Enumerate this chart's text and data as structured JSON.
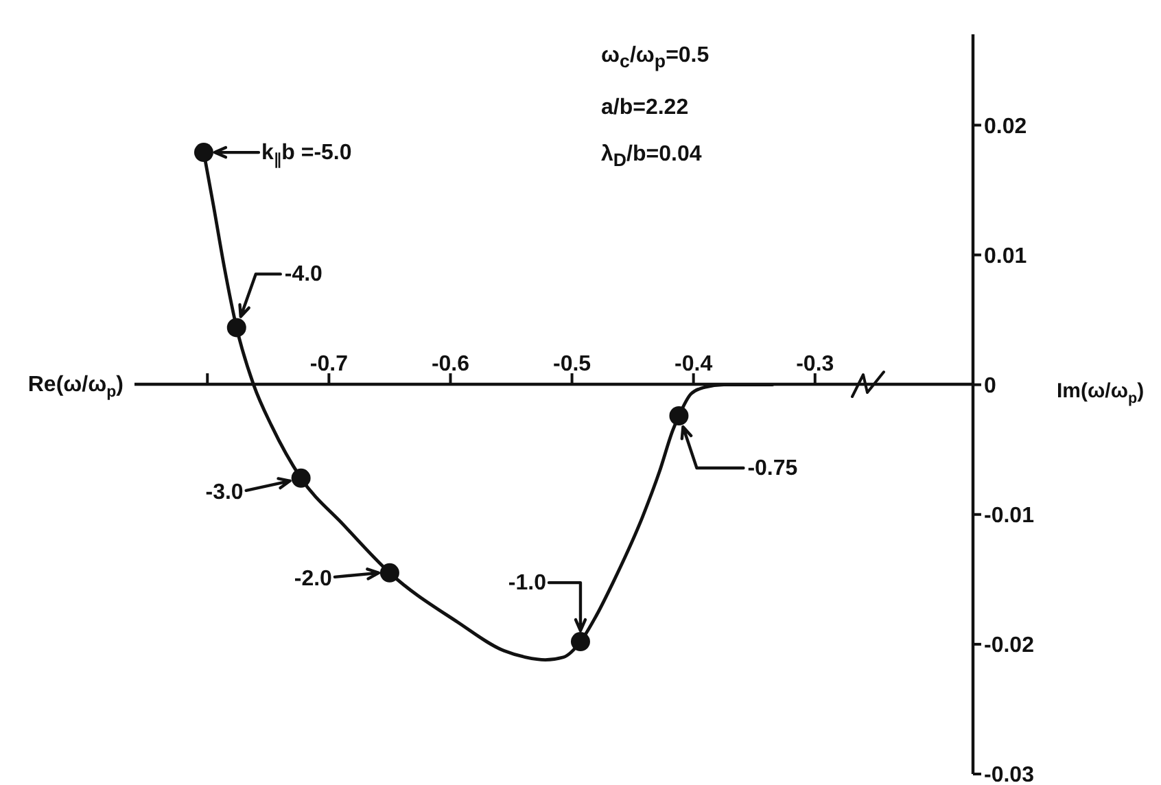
{
  "chart_data": {
    "type": "line",
    "xlabel": "Re(ω/ω$_{p}$)",
    "ylabel": "Im(ω/ω$_{p}$)",
    "annotations": [
      "ω$_{c}$/ω$_{p}$=0.5",
      "a/b=2.22",
      "λ$_{D}$/b=0.04",
      {
        "text": "k$_{∥}$b =-5.0",
        "x": -0.803,
        "y": 0.0179
      },
      {
        "text": "-4.0",
        "x": -0.776,
        "y": 0.0044
      },
      {
        "text": "-3.0",
        "x": -0.723,
        "y": -0.0072
      },
      {
        "text": "-2.0",
        "x": -0.65,
        "y": -0.0145
      },
      {
        "text": "-1.0",
        "x": -0.493,
        "y": -0.0198
      },
      {
        "text": "-0.75",
        "x": -0.412,
        "y": -0.0024
      }
    ],
    "series": [
      {
        "color": "#111111",
        "x": [
          -0.803,
          -0.795,
          -0.786,
          -0.776,
          -0.762,
          -0.747,
          -0.723,
          -0.688,
          -0.65,
          -0.594,
          -0.556,
          -0.538,
          -0.522,
          -0.507,
          -0.493,
          -0.48,
          -0.466,
          -0.442,
          -0.428,
          -0.417,
          -0.412,
          -0.402,
          -0.391,
          -0.375,
          -0.335
        ],
        "values": [
          0.0179,
          0.0138,
          0.009,
          0.0044,
          0.0,
          -0.0032,
          -0.0072,
          -0.0108,
          -0.0145,
          -0.0183,
          -0.0205,
          -0.021,
          -0.0212,
          -0.021,
          -0.0198,
          -0.0178,
          -0.0152,
          -0.0102,
          -0.0067,
          -0.0035,
          -0.0024,
          -0.0007,
          -0.0002,
          0.0,
          0.0
        ]
      },
      {
        "type": "scatter",
        "marker": "circle",
        "color": "#111111",
        "x": [
          -0.803,
          -0.776,
          -0.723,
          -0.65,
          -0.493,
          -0.412
        ],
        "values": [
          0.0179,
          0.0044,
          -0.0072,
          -0.0145,
          -0.0198,
          -0.0024
        ]
      }
    ],
    "xlim": [
      -0.86,
      -0.17
    ],
    "xticks": [
      {
        "value": -0.8,
        "label": null
      },
      -0.7,
      -0.6,
      -0.5,
      -0.4,
      -0.3
    ],
    "ylim": [
      -0.03,
      0.027
    ],
    "yticks": [
      -0.03,
      -0.02,
      -0.01,
      0,
      0.01,
      0.02
    ]
  }
}
